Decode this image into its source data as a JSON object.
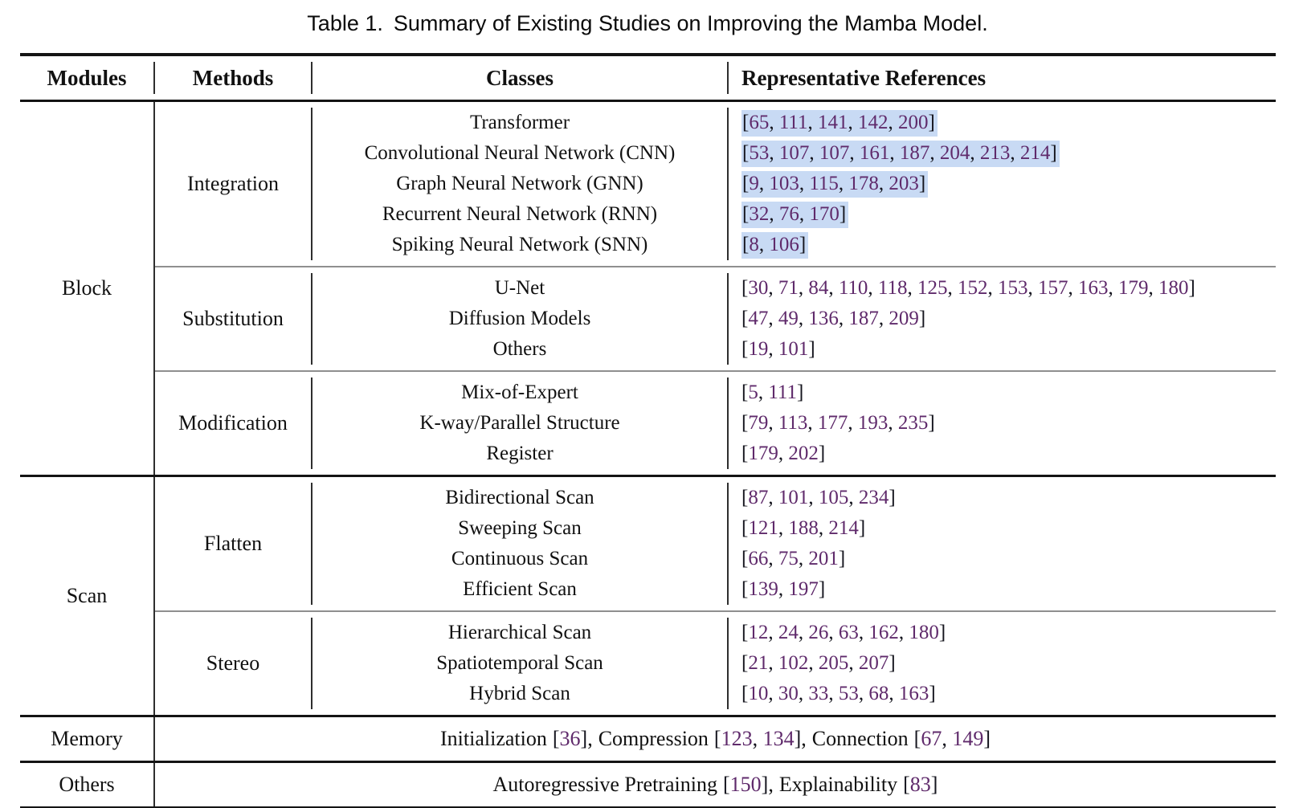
{
  "caption": {
    "number": "Table 1.",
    "text": "Summary of Existing Studies on Improving the Mamba Model."
  },
  "columns": [
    "Modules",
    "Methods",
    "Classes",
    "Representative References"
  ],
  "colors": {
    "highlight": "#c8daf4",
    "reference_number": "#5f2a6b",
    "group_rule_gray": "#8f8f8f",
    "module_rule_black": "#141414"
  },
  "table": {
    "modules": [
      {
        "name": "Block",
        "groups": [
          {
            "method": "Integration",
            "highlight": true,
            "rows": [
              {
                "class_name": "Transformer",
                "refs": [
                  65,
                  111,
                  141,
                  142,
                  200
                ]
              },
              {
                "class_name": "Convolutional Neural Network (CNN)",
                "refs": [
                  53,
                  107,
                  107,
                  161,
                  187,
                  204,
                  213,
                  214
                ]
              },
              {
                "class_name": "Graph Neural Network (GNN)",
                "refs": [
                  9,
                  103,
                  115,
                  178,
                  203
                ]
              },
              {
                "class_name": "Recurrent Neural Network (RNN)",
                "refs": [
                  32,
                  76,
                  170
                ]
              },
              {
                "class_name": "Spiking Neural Network (SNN)",
                "refs": [
                  8,
                  106
                ]
              }
            ]
          },
          {
            "method": "Substitution",
            "highlight": false,
            "rows": [
              {
                "class_name": "U-Net",
                "refs": [
                  30,
                  71,
                  84,
                  110,
                  118,
                  125,
                  152,
                  153,
                  157,
                  163,
                  179,
                  180
                ]
              },
              {
                "class_name": "Diffusion Models",
                "refs": [
                  47,
                  49,
                  136,
                  187,
                  209
                ]
              },
              {
                "class_name": "Others",
                "refs": [
                  19,
                  101
                ]
              }
            ]
          },
          {
            "method": "Modification",
            "highlight": false,
            "rows": [
              {
                "class_name": "Mix-of-Expert",
                "refs": [
                  5,
                  111
                ]
              },
              {
                "class_name": "K-way/Parallel Structure",
                "refs": [
                  79,
                  113,
                  177,
                  193,
                  235
                ]
              },
              {
                "class_name": "Register",
                "refs": [
                  179,
                  202
                ]
              }
            ]
          }
        ]
      },
      {
        "name": "Scan",
        "groups": [
          {
            "method": "Flatten",
            "highlight": false,
            "rows": [
              {
                "class_name": "Bidirectional Scan",
                "refs": [
                  87,
                  101,
                  105,
                  234
                ]
              },
              {
                "class_name": "Sweeping Scan",
                "refs": [
                  121,
                  188,
                  214
                ]
              },
              {
                "class_name": "Continuous Scan",
                "refs": [
                  66,
                  75,
                  201
                ]
              },
              {
                "class_name": "Efficient Scan",
                "refs": [
                  139,
                  197
                ]
              }
            ]
          },
          {
            "method": "Stereo",
            "highlight": false,
            "rows": [
              {
                "class_name": "Hierarchical Scan",
                "refs": [
                  12,
                  24,
                  26,
                  63,
                  162,
                  180
                ]
              },
              {
                "class_name": "Spatiotemporal Scan",
                "refs": [
                  21,
                  102,
                  205,
                  207
                ]
              },
              {
                "class_name": "Hybrid Scan",
                "refs": [
                  10,
                  30,
                  33,
                  53,
                  68,
                  163
                ]
              }
            ]
          }
        ]
      }
    ],
    "span_rows": [
      {
        "module": "Memory",
        "items": [
          {
            "label": "Initialization",
            "refs": [
              36
            ]
          },
          {
            "label": "Compression",
            "refs": [
              123,
              134
            ]
          },
          {
            "label": "Connection",
            "refs": [
              67,
              149
            ]
          }
        ]
      },
      {
        "module": "Others",
        "items": [
          {
            "label": "Autoregressive Pretraining",
            "refs": [
              150
            ]
          },
          {
            "label": "Explainability",
            "refs": [
              83
            ]
          }
        ]
      }
    ]
  }
}
